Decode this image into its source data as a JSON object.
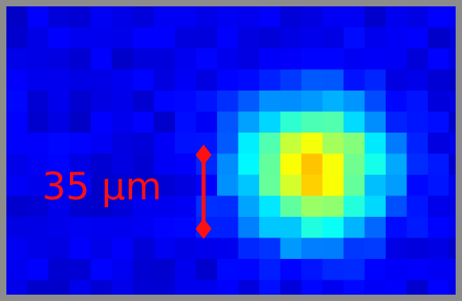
{
  "scale_bar": {
    "label": "35 µm"
  }
}
